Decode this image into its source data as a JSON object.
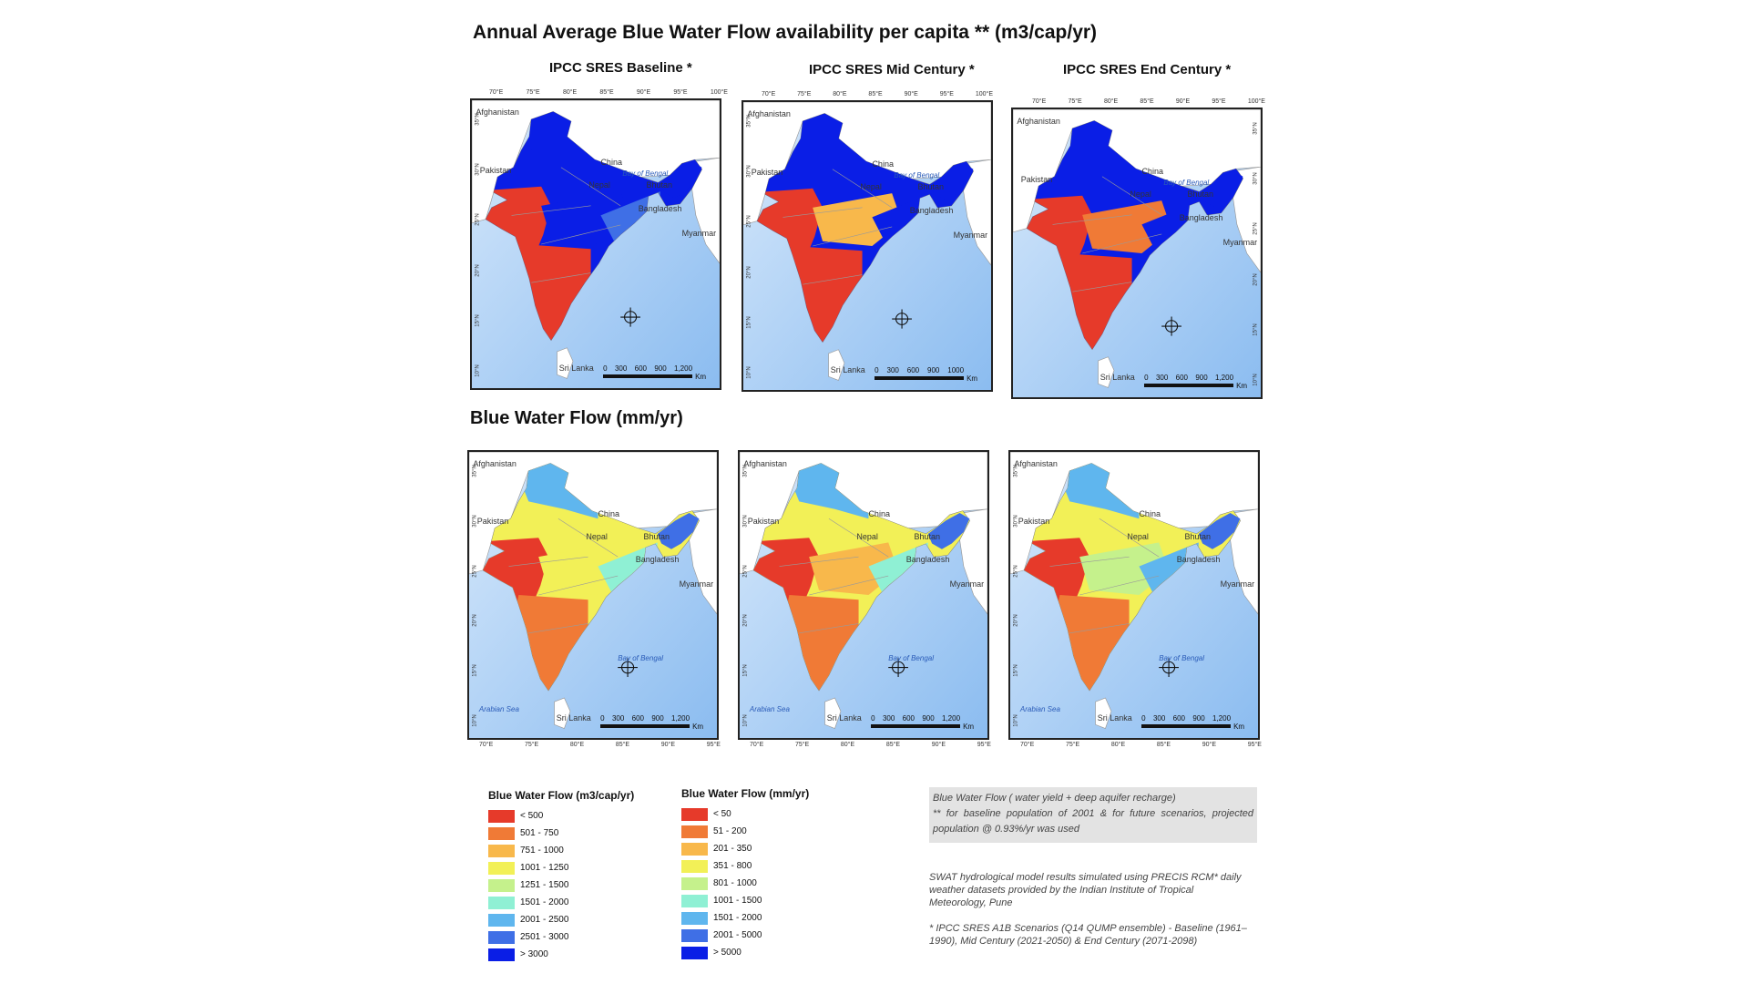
{
  "title": "Annual Average Blue Water Flow availability per capita ** (m3/cap/yr)",
  "section2_title": "Blue Water Flow (mm/yr)",
  "column_titles": [
    "IPCC SRES Baseline *",
    "IPCC SRES Mid Century *",
    "IPCC SRES End Century *"
  ],
  "lon_ticks": [
    "70°E",
    "75°E",
    "80°E",
    "85°E",
    "90°E",
    "95°E",
    "100°E"
  ],
  "lon_ticks_bottom": [
    "70°E",
    "75°E",
    "80°E",
    "85°E",
    "90°E",
    "95°E"
  ],
  "lat_ticks": [
    "35°N",
    "30°N",
    "25°N",
    "20°N",
    "15°N",
    "10°N"
  ],
  "map_labels": {
    "afghanistan": "Afghanistan",
    "pakistan": "Pakistan",
    "china": "China",
    "nepal": "Nepal",
    "bhutan": "Bhutan",
    "bangladesh": "Bangladesh",
    "myanmar": "Myanmar",
    "sri_lanka": "Sri Lanka",
    "bay_of_bengal": "Bay of Bengal",
    "arabian_sea": "Arabian Sea"
  },
  "scale_bar": {
    "values_a": [
      "0",
      "300",
      "600",
      "900",
      "1,200"
    ],
    "values_b": [
      "0",
      "300",
      "600",
      "900",
      "1000"
    ],
    "unit": "Km"
  },
  "legend_per_capita": {
    "title": "Blue Water Flow (m3/cap/yr)",
    "classes": [
      "< 500",
      "501 - 750",
      "751 - 1000",
      "1001 - 1250",
      "1251 - 1500",
      "1501 - 2000",
      "2001 - 2500",
      "2501 - 3000",
      "> 3000"
    ]
  },
  "legend_mm": {
    "title": "Blue Water Flow (mm/yr)",
    "classes": [
      "< 50",
      "51 - 200",
      "201 - 350",
      "351 - 800",
      "801 - 1000",
      "1001 - 1500",
      "1501 - 2000",
      "2001 - 5000",
      "> 5000"
    ]
  },
  "colors": [
    "#e63a2a",
    "#f07a36",
    "#f8b84b",
    "#f2f057",
    "#c5f18c",
    "#8ff0d4",
    "#5fb6ee",
    "#3f6fe6",
    "#0a1ee6"
  ],
  "note_box": {
    "line1": "Blue Water Flow ( water yield + deep aquifer recharge)",
    "line2": "** for baseline population of 2001 & for future scenarios, projected population @ 0.93%/yr was used"
  },
  "note_swat": "SWAT hydrological model results simulated using PRECIS RCM* daily weather datasets provided by the Indian Institute of Tropical Meteorology, Pune",
  "note_ipcc": "* IPCC SRES A1B Scenarios (Q14 QUMP ensemble) - Baseline (1961–1990), Mid Century (2021-2050) & End Century (2071-2098)"
}
